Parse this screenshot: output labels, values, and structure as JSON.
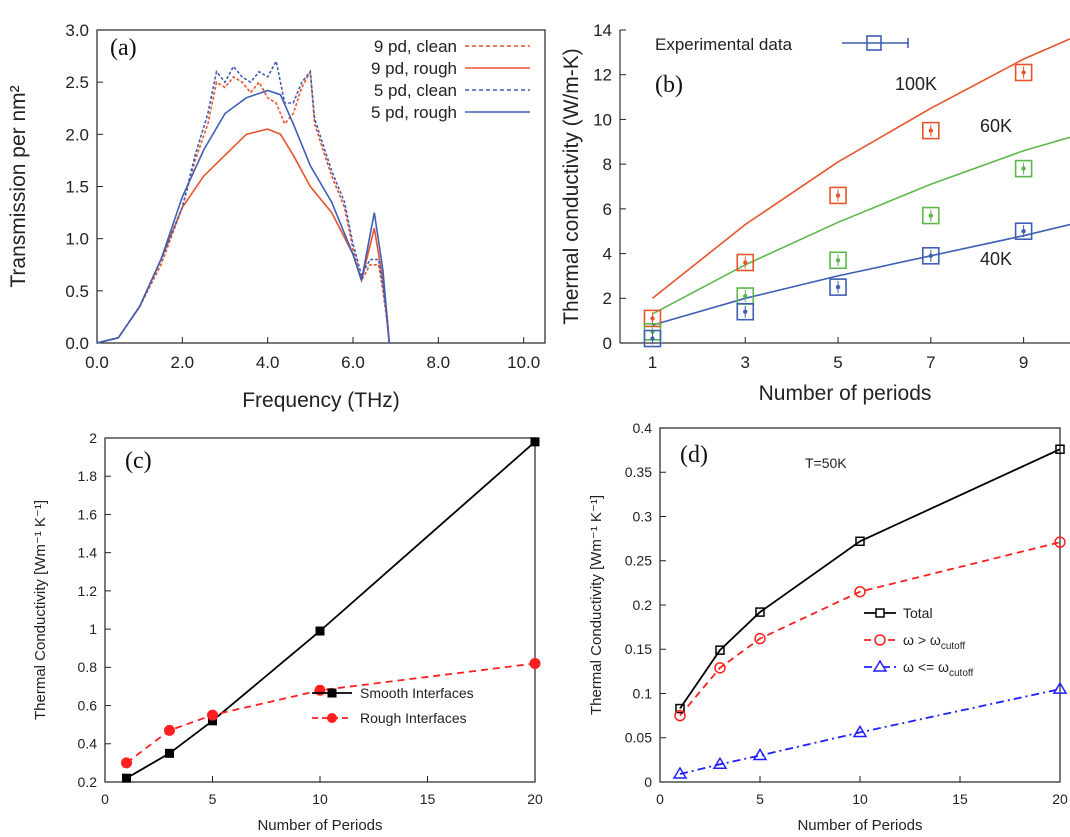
{
  "chart_data": [
    {
      "panel": "(a)",
      "type": "line",
      "xlabel": "Frequency (THz)",
      "ylabel": "Transmission per nm²",
      "xlim": [
        0,
        10.5
      ],
      "ylim": [
        0,
        3.0
      ],
      "xticks": [
        "0.0",
        "2.0",
        "4.0",
        "6.0",
        "8.0",
        "10.0"
      ],
      "yticks": [
        "0.0",
        "0.5",
        "1.0",
        "1.5",
        "2.0",
        "2.5",
        "3.0"
      ],
      "legend_position": "top-right",
      "colors": {
        "red": "#e8542b",
        "blue": "#3f5fb5"
      },
      "series": [
        {
          "name": "9 pd, clean",
          "color": "#e8542b",
          "dash": "dashed",
          "x": [
            0.0,
            0.5,
            1.0,
            1.5,
            2.0,
            2.3,
            2.6,
            2.8,
            3.0,
            3.2,
            3.4,
            3.6,
            3.8,
            4.0,
            4.2,
            4.4,
            4.6,
            4.8,
            5.0,
            5.1,
            5.3,
            5.5,
            5.8,
            6.0,
            6.2,
            6.4,
            6.6,
            6.7,
            6.8,
            6.85
          ],
          "y": [
            0.0,
            0.05,
            0.35,
            0.75,
            1.3,
            1.75,
            2.1,
            2.5,
            2.45,
            2.55,
            2.5,
            2.4,
            2.5,
            2.35,
            2.3,
            2.1,
            2.2,
            2.45,
            2.6,
            2.1,
            1.85,
            1.6,
            1.3,
            0.9,
            0.6,
            0.75,
            0.75,
            0.5,
            0.2,
            0.0
          ]
        },
        {
          "name": "9 pd, rough",
          "color": "#e8542b",
          "dash": "solid",
          "x": [
            0.0,
            0.5,
            1.0,
            1.5,
            2.0,
            2.5,
            3.0,
            3.5,
            4.0,
            4.3,
            4.6,
            5.0,
            5.5,
            6.0,
            6.2,
            6.5,
            6.7,
            6.85
          ],
          "y": [
            0.0,
            0.05,
            0.35,
            0.8,
            1.3,
            1.6,
            1.8,
            2.0,
            2.05,
            2.0,
            1.8,
            1.5,
            1.25,
            0.85,
            0.6,
            1.1,
            0.6,
            0.0
          ]
        },
        {
          "name": "5 pd, clean",
          "color": "#3f5fb5",
          "dash": "dashed",
          "x": [
            0.0,
            0.5,
            1.0,
            1.5,
            2.0,
            2.3,
            2.6,
            2.8,
            3.0,
            3.2,
            3.4,
            3.6,
            3.8,
            4.0,
            4.2,
            4.4,
            4.6,
            4.8,
            5.0,
            5.1,
            5.3,
            5.5,
            5.8,
            6.0,
            6.2,
            6.4,
            6.6,
            6.7,
            6.8,
            6.85
          ],
          "y": [
            0.0,
            0.05,
            0.35,
            0.8,
            1.3,
            1.8,
            2.2,
            2.6,
            2.5,
            2.65,
            2.55,
            2.5,
            2.6,
            2.55,
            2.7,
            2.3,
            2.3,
            2.5,
            2.6,
            2.15,
            1.9,
            1.65,
            1.35,
            0.95,
            0.65,
            0.8,
            0.8,
            0.55,
            0.25,
            0.0
          ]
        },
        {
          "name": "5 pd, rough",
          "color": "#3f5fb5",
          "dash": "solid",
          "x": [
            0.0,
            0.5,
            1.0,
            1.5,
            2.0,
            2.5,
            3.0,
            3.5,
            4.0,
            4.3,
            4.6,
            5.0,
            5.5,
            6.0,
            6.2,
            6.5,
            6.7,
            6.85
          ],
          "y": [
            0.0,
            0.05,
            0.35,
            0.8,
            1.4,
            1.85,
            2.2,
            2.35,
            2.42,
            2.38,
            2.1,
            1.7,
            1.35,
            0.85,
            0.6,
            1.25,
            0.7,
            0.0
          ]
        }
      ]
    },
    {
      "panel": "(b)",
      "type": "line",
      "xlabel": "Number of periods",
      "ylabel": "Thermal conductivity (W/m-K)",
      "xlim": [
        0.3,
        10
      ],
      "ylim": [
        0,
        14
      ],
      "xticks": [
        "1",
        "3",
        "5",
        "7",
        "9"
      ],
      "yticks": [
        "0",
        "2",
        "4",
        "6",
        "8",
        "10",
        "12",
        "14"
      ],
      "legend": "Experimental data",
      "legend_position": "top-left",
      "series": [
        {
          "name": "100K",
          "color": "#e8542b",
          "x": [
            1,
            3,
            5,
            7,
            9,
            10
          ],
          "y": [
            2.0,
            5.3,
            8.1,
            10.5,
            12.7,
            13.6
          ],
          "exp_x": [
            1,
            3,
            5,
            7,
            9
          ],
          "exp_y": [
            1.1,
            3.6,
            6.6,
            9.5,
            12.1
          ]
        },
        {
          "name": "60K",
          "color": "#5cb84a",
          "x": [
            1,
            3,
            5,
            7,
            9,
            10
          ],
          "y": [
            1.3,
            3.5,
            5.4,
            7.1,
            8.6,
            9.2
          ],
          "exp_x": [
            1,
            3,
            5,
            7,
            9
          ],
          "exp_y": [
            0.5,
            2.1,
            3.7,
            5.7,
            7.8
          ]
        },
        {
          "name": "40K",
          "color": "#3f5fb5",
          "x": [
            1,
            3,
            5,
            7,
            9,
            10
          ],
          "y": [
            0.8,
            2.0,
            3.0,
            3.9,
            4.8,
            5.3
          ],
          "exp_x": [
            1,
            3,
            5,
            7,
            9
          ],
          "exp_y": [
            0.2,
            1.4,
            2.5,
            3.9,
            5.0
          ]
        }
      ]
    },
    {
      "panel": "(c)",
      "type": "line",
      "xlabel": "Number of Periods",
      "ylabel": "Thermal Conductivity [Wm⁻¹ K⁻¹]",
      "xlim": [
        0,
        20
      ],
      "ylim": [
        0.2,
        2.0
      ],
      "xticks": [
        "0",
        "5",
        "10",
        "15",
        "20"
      ],
      "yticks": [
        "0.2",
        "0.4",
        "0.6",
        "0.8",
        "1",
        "1.2",
        "1.4",
        "1.6",
        "1.8",
        "2"
      ],
      "legend_position": "bottom-right",
      "series": [
        {
          "name": "Smooth Interfaces",
          "color": "#000000",
          "dash": "solid",
          "marker": "square",
          "x": [
            1,
            3,
            5,
            10,
            20
          ],
          "y": [
            0.22,
            0.35,
            0.52,
            0.99,
            1.98
          ]
        },
        {
          "name": "Rough Interfaces",
          "color": "#ff1f1f",
          "dash": "dashed",
          "marker": "circle",
          "x": [
            1,
            3,
            5,
            10,
            20
          ],
          "y": [
            0.3,
            0.47,
            0.55,
            0.68,
            0.82
          ]
        }
      ]
    },
    {
      "panel": "(d)",
      "type": "line",
      "annotation": "T=50K",
      "xlabel": "Number of Periods",
      "ylabel": "Thermal Conductivity [Wm⁻¹ K⁻¹]",
      "xlim": [
        0,
        20
      ],
      "ylim": [
        0,
        0.4
      ],
      "xticks": [
        "0",
        "5",
        "10",
        "15",
        "20"
      ],
      "yticks": [
        "0",
        "0.05",
        "0.1",
        "0.15",
        "0.2",
        "0.25",
        "0.3",
        "0.35",
        "0.4"
      ],
      "legend_position": "center-right",
      "series": [
        {
          "name": "Total",
          "color": "#000000",
          "dash": "solid",
          "marker": "open-square",
          "x": [
            1,
            3,
            5,
            10,
            20
          ],
          "y": [
            0.083,
            0.149,
            0.192,
            0.272,
            0.376
          ]
        },
        {
          "name": "ω > ω",
          "sub": "cutoff",
          "color": "#ff1f1f",
          "dash": "dashed",
          "marker": "open-circle",
          "x": [
            1,
            3,
            5,
            10,
            20
          ],
          "y": [
            0.075,
            0.129,
            0.162,
            0.215,
            0.271
          ]
        },
        {
          "name": "ω <= ω",
          "sub": "cutoff",
          "color": "#1f1fff",
          "dash": "dashdot",
          "marker": "open-triangle",
          "x": [
            1,
            3,
            5,
            10,
            20
          ],
          "y": [
            0.009,
            0.02,
            0.03,
            0.056,
            0.105
          ]
        }
      ]
    }
  ]
}
